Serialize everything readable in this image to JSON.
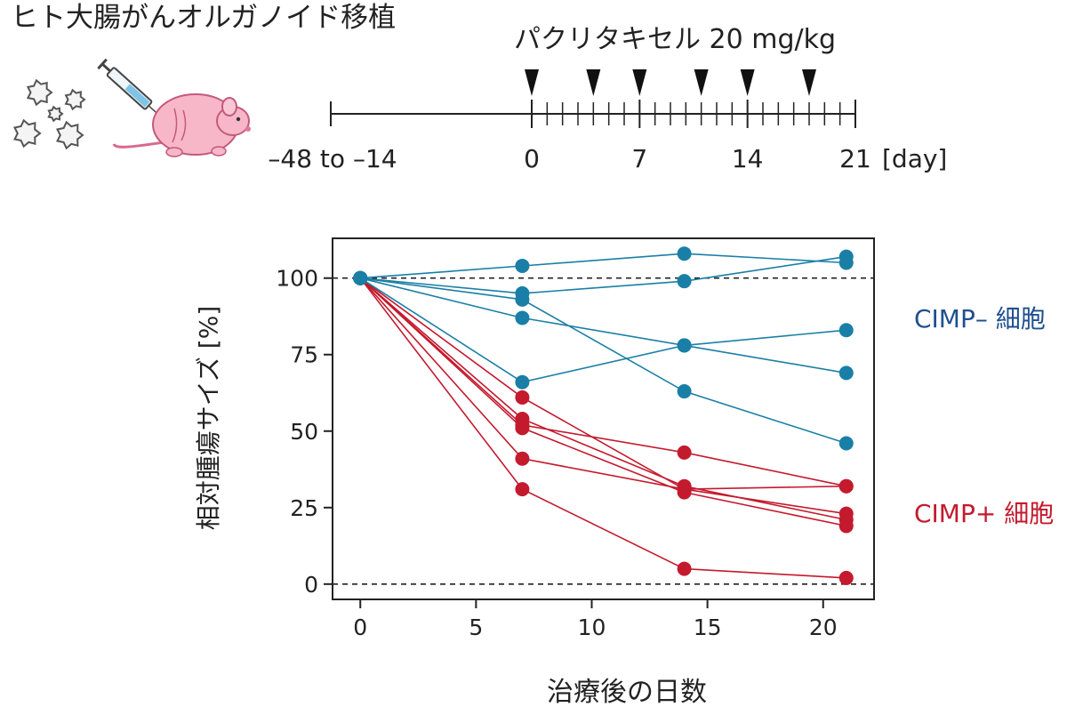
{
  "header": {
    "title": "ヒト大腸がんオルガノイド移植",
    "treatment_label": "パクリタキセル 20 mg/kg"
  },
  "timeline": {
    "pre_label": "–48 to –14",
    "ticks": [
      "0",
      "7",
      "14",
      "21"
    ],
    "unit": "[day]",
    "dose_days": [
      0,
      4,
      7,
      11,
      14,
      18
    ],
    "minor_ticks_per_day": 1
  },
  "icons": {
    "organoid": "organoid-cluster-icon",
    "syringe": "syringe-icon",
    "mouse": "mouse-icon"
  },
  "colors": {
    "cimp_neg": "#1a7fa6",
    "cimp_pos": "#c41a2e",
    "cimp_neg_label": "#1f4f8f",
    "cimp_pos_label": "#c41a2e",
    "axis": "#222222"
  },
  "chart_data": {
    "type": "line",
    "xlabel": "治療後の日数",
    "ylabel": "相対腫瘍サイズ [%]",
    "xlim": [
      -1.2,
      22.2
    ],
    "ylim": [
      -5,
      113
    ],
    "x_ticks": [
      0,
      5,
      10,
      15,
      20
    ],
    "y_ticks": [
      0,
      25,
      50,
      75,
      100
    ],
    "reference_lines": [
      0,
      100
    ],
    "x": [
      0,
      7,
      14,
      21
    ],
    "group_labels": [
      {
        "text": "CIMP– 細胞",
        "group": "cimp_neg"
      },
      {
        "text": "CIMP+ 細胞",
        "group": "cimp_pos"
      }
    ],
    "series": [
      {
        "group": "cimp_neg",
        "values": [
          100,
          104,
          108,
          105
        ]
      },
      {
        "group": "cimp_neg",
        "values": [
          100,
          95,
          99,
          107
        ]
      },
      {
        "group": "cimp_neg",
        "values": [
          100,
          93,
          63,
          46
        ]
      },
      {
        "group": "cimp_neg",
        "values": [
          100,
          87,
          78,
          69
        ]
      },
      {
        "group": "cimp_neg",
        "values": [
          100,
          66,
          78,
          83
        ]
      },
      {
        "group": "cimp_pos",
        "values": [
          100,
          61,
          31,
          23
        ]
      },
      {
        "group": "cimp_pos",
        "values": [
          100,
          54,
          32,
          21
        ]
      },
      {
        "group": "cimp_pos",
        "values": [
          100,
          52,
          43,
          32
        ]
      },
      {
        "group": "cimp_pos",
        "values": [
          100,
          51,
          30,
          19
        ]
      },
      {
        "group": "cimp_pos",
        "values": [
          100,
          41,
          31,
          32
        ]
      },
      {
        "group": "cimp_pos",
        "values": [
          100,
          31,
          5,
          2
        ]
      }
    ]
  }
}
